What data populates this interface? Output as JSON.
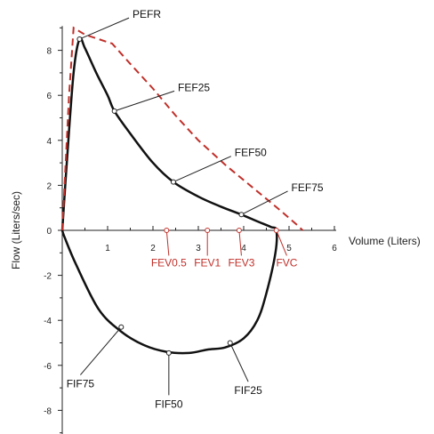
{
  "chart_data": {
    "type": "line",
    "xlabel": "Volume (Liters)",
    "ylabel": "Flow (Liters/sec)",
    "xlim": [
      0,
      6
    ],
    "ylim": [
      -9,
      9
    ],
    "x_ticks": [
      1,
      2,
      3,
      4,
      5,
      6
    ],
    "y_ticks": [
      -8,
      -6,
      -4,
      -2,
      0,
      2,
      4,
      6,
      8
    ],
    "grid": false,
    "colors": {
      "measured": "#111111",
      "predicted": "#c0302a"
    },
    "series": [
      {
        "style": "solid",
        "points": [
          [
            0,
            0
          ],
          [
            0.1,
            3
          ],
          [
            0.25,
            7
          ],
          [
            0.38,
            8.5
          ],
          [
            0.5,
            8.1
          ],
          [
            0.75,
            7
          ],
          [
            1.0,
            6.0
          ],
          [
            1.15,
            5.3
          ],
          [
            1.5,
            4.3
          ],
          [
            2.0,
            3.0
          ],
          [
            2.45,
            2.15
          ],
          [
            3.0,
            1.5
          ],
          [
            3.5,
            1.05
          ],
          [
            3.95,
            0.7
          ],
          [
            4.3,
            0.4
          ],
          [
            4.6,
            0.15
          ],
          [
            4.72,
            0
          ],
          [
            4.7,
            -1.0
          ],
          [
            4.5,
            -2.8
          ],
          [
            4.3,
            -4.0
          ],
          [
            4.0,
            -4.8
          ],
          [
            3.6,
            -5.2
          ],
          [
            3.2,
            -5.3
          ],
          [
            2.8,
            -5.45
          ],
          [
            2.3,
            -5.4
          ],
          [
            1.8,
            -5.1
          ],
          [
            1.3,
            -4.5
          ],
          [
            0.8,
            -3.5
          ],
          [
            0.3,
            -1.5
          ],
          [
            0.05,
            -0.3
          ],
          [
            0,
            0
          ]
        ]
      },
      {
        "style": "dashed",
        "points": [
          [
            0,
            0
          ],
          [
            0.15,
            6
          ],
          [
            0.25,
            9.0
          ],
          [
            0.5,
            8.7
          ],
          [
            1.1,
            8.3
          ],
          [
            1.5,
            7.4
          ],
          [
            2.0,
            6.3
          ],
          [
            2.5,
            5.1
          ],
          [
            3.0,
            4.0
          ],
          [
            3.6,
            2.9
          ],
          [
            4.2,
            1.9
          ],
          [
            4.8,
            0.9
          ],
          [
            5.2,
            0.2
          ],
          [
            5.3,
            0
          ]
        ]
      }
    ],
    "annotations": [
      {
        "label": "PEFR",
        "x": 0.38,
        "y": 8.5,
        "label_x": 1.55,
        "label_y": 9.6,
        "color": "black"
      },
      {
        "label": "FEF25",
        "x": 1.15,
        "y": 5.3,
        "label_x": 2.55,
        "label_y": 6.35,
        "color": "black"
      },
      {
        "label": "FEF50",
        "x": 2.45,
        "y": 2.15,
        "label_x": 3.8,
        "label_y": 3.45,
        "color": "black"
      },
      {
        "label": "FEF75",
        "x": 3.95,
        "y": 0.7,
        "label_x": 5.05,
        "label_y": 1.9,
        "color": "black"
      },
      {
        "label": "FEV0.5",
        "x": 2.3,
        "y": 0,
        "label_x": 2.35,
        "label_y": -1.6,
        "color": "red"
      },
      {
        "label": "FEV1",
        "x": 3.2,
        "y": 0,
        "label_x": 3.2,
        "label_y": -1.6,
        "color": "red"
      },
      {
        "label": "FEV3",
        "x": 3.9,
        "y": 0,
        "label_x": 3.95,
        "label_y": -1.6,
        "color": "red"
      },
      {
        "label": "FVC",
        "x": 4.72,
        "y": 0,
        "label_x": 4.95,
        "label_y": -1.6,
        "color": "red"
      },
      {
        "label": "FIF75",
        "x": 1.3,
        "y": -4.3,
        "label_x": 0.4,
        "label_y": -6.9,
        "color": "black"
      },
      {
        "label": "FIF50",
        "x": 2.35,
        "y": -5.45,
        "label_x": 2.35,
        "label_y": -7.8,
        "color": "black"
      },
      {
        "label": "FIF25",
        "x": 3.7,
        "y": -5.0,
        "label_x": 4.1,
        "label_y": -7.2,
        "color": "black"
      }
    ]
  }
}
